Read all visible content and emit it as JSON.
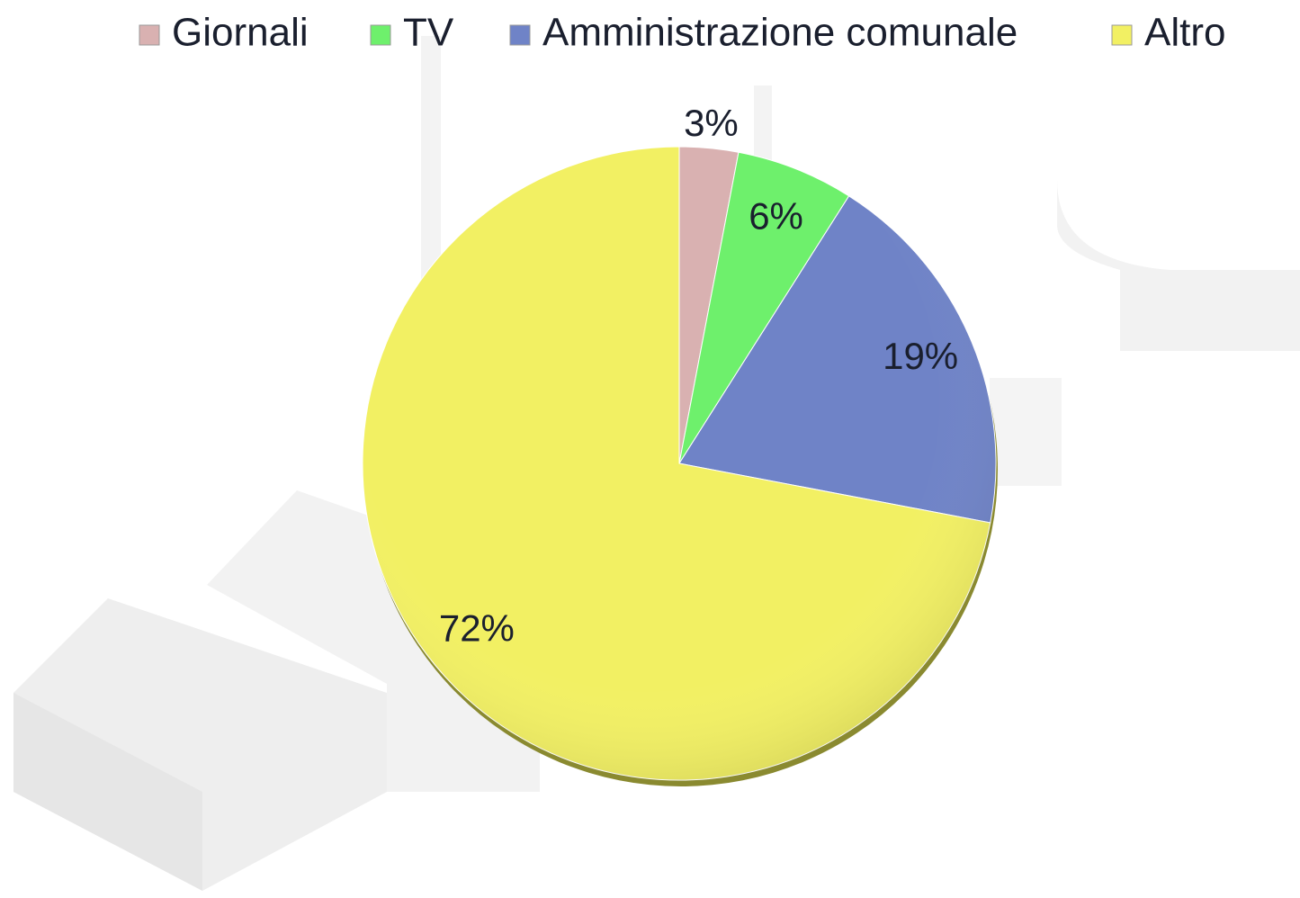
{
  "chart_data": {
    "type": "pie",
    "categories": [
      "Giornali",
      "TV",
      "Amministrazione comunale",
      "Altro"
    ],
    "values": [
      3,
      6,
      19,
      72
    ],
    "value_labels": [
      "3%",
      "6%",
      "19%",
      "72%"
    ],
    "colors": [
      "#d9b1b1",
      "#6ef06c",
      "#6f83c7",
      "#f2f063"
    ],
    "legend": "top"
  }
}
